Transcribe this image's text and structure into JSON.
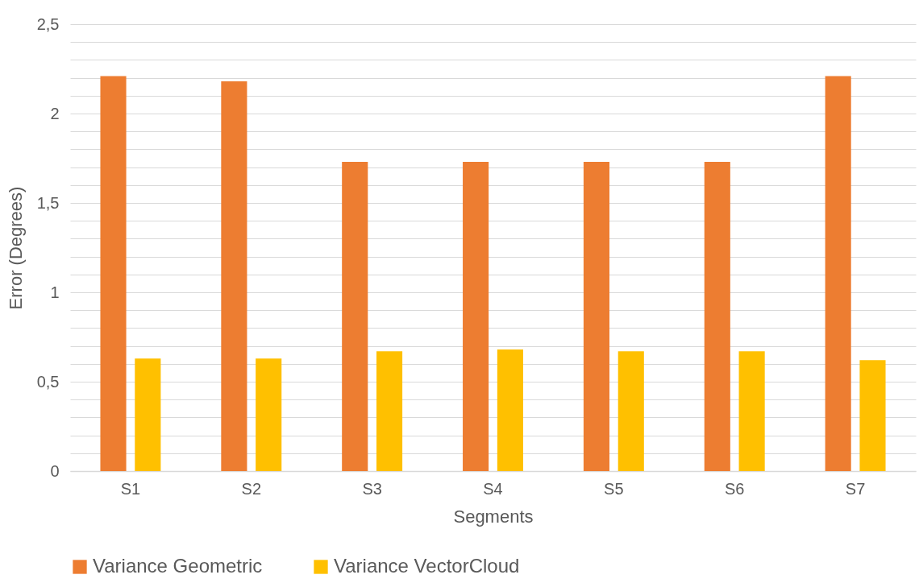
{
  "chart_data": {
    "type": "bar",
    "xlabel": "Segments",
    "ylabel": "Error (Degrees)",
    "categories": [
      "S1",
      "S2",
      "S3",
      "S4",
      "S5",
      "S6",
      "S7"
    ],
    "series": [
      {
        "name": "Variance Geometric",
        "color": "#ed7d31",
        "values": [
          2.21,
          2.18,
          1.73,
          1.73,
          1.73,
          1.73,
          2.21
        ]
      },
      {
        "name": "Variance VectorCloud",
        "color": "#ffc000",
        "values": [
          0.63,
          0.63,
          0.67,
          0.68,
          0.67,
          0.67,
          0.62
        ]
      }
    ],
    "ylim": [
      0,
      2.5
    ],
    "yticks": [
      0,
      {
        "value": 0.1,
        "label": null
      },
      {
        "value": 0.2,
        "label": null
      },
      {
        "value": 0.3,
        "label": null
      },
      {
        "value": 0.4,
        "label": null
      },
      {
        "value": 0.5,
        "label": "0,5"
      },
      {
        "value": 0.6,
        "label": null
      },
      {
        "value": 0.7,
        "label": null
      },
      {
        "value": 0.8,
        "label": null
      },
      {
        "value": 0.9,
        "label": null
      },
      1,
      {
        "value": 1.1,
        "label": null
      },
      {
        "value": 1.2,
        "label": null
      },
      {
        "value": 1.3,
        "label": null
      },
      {
        "value": 1.4,
        "label": null
      },
      {
        "value": 1.5,
        "label": "1,5"
      },
      {
        "value": 1.6,
        "label": null
      },
      {
        "value": 1.7,
        "label": null
      },
      {
        "value": 1.8,
        "label": null
      },
      {
        "value": 1.9,
        "label": null
      },
      2,
      {
        "value": 2.1,
        "label": null
      },
      {
        "value": 2.2,
        "label": null
      },
      {
        "value": 2.3,
        "label": null
      },
      {
        "value": 2.4,
        "label": null
      },
      {
        "value": 2.5,
        "label": "2,5"
      }
    ],
    "grid": "y",
    "legend": "bottom"
  }
}
